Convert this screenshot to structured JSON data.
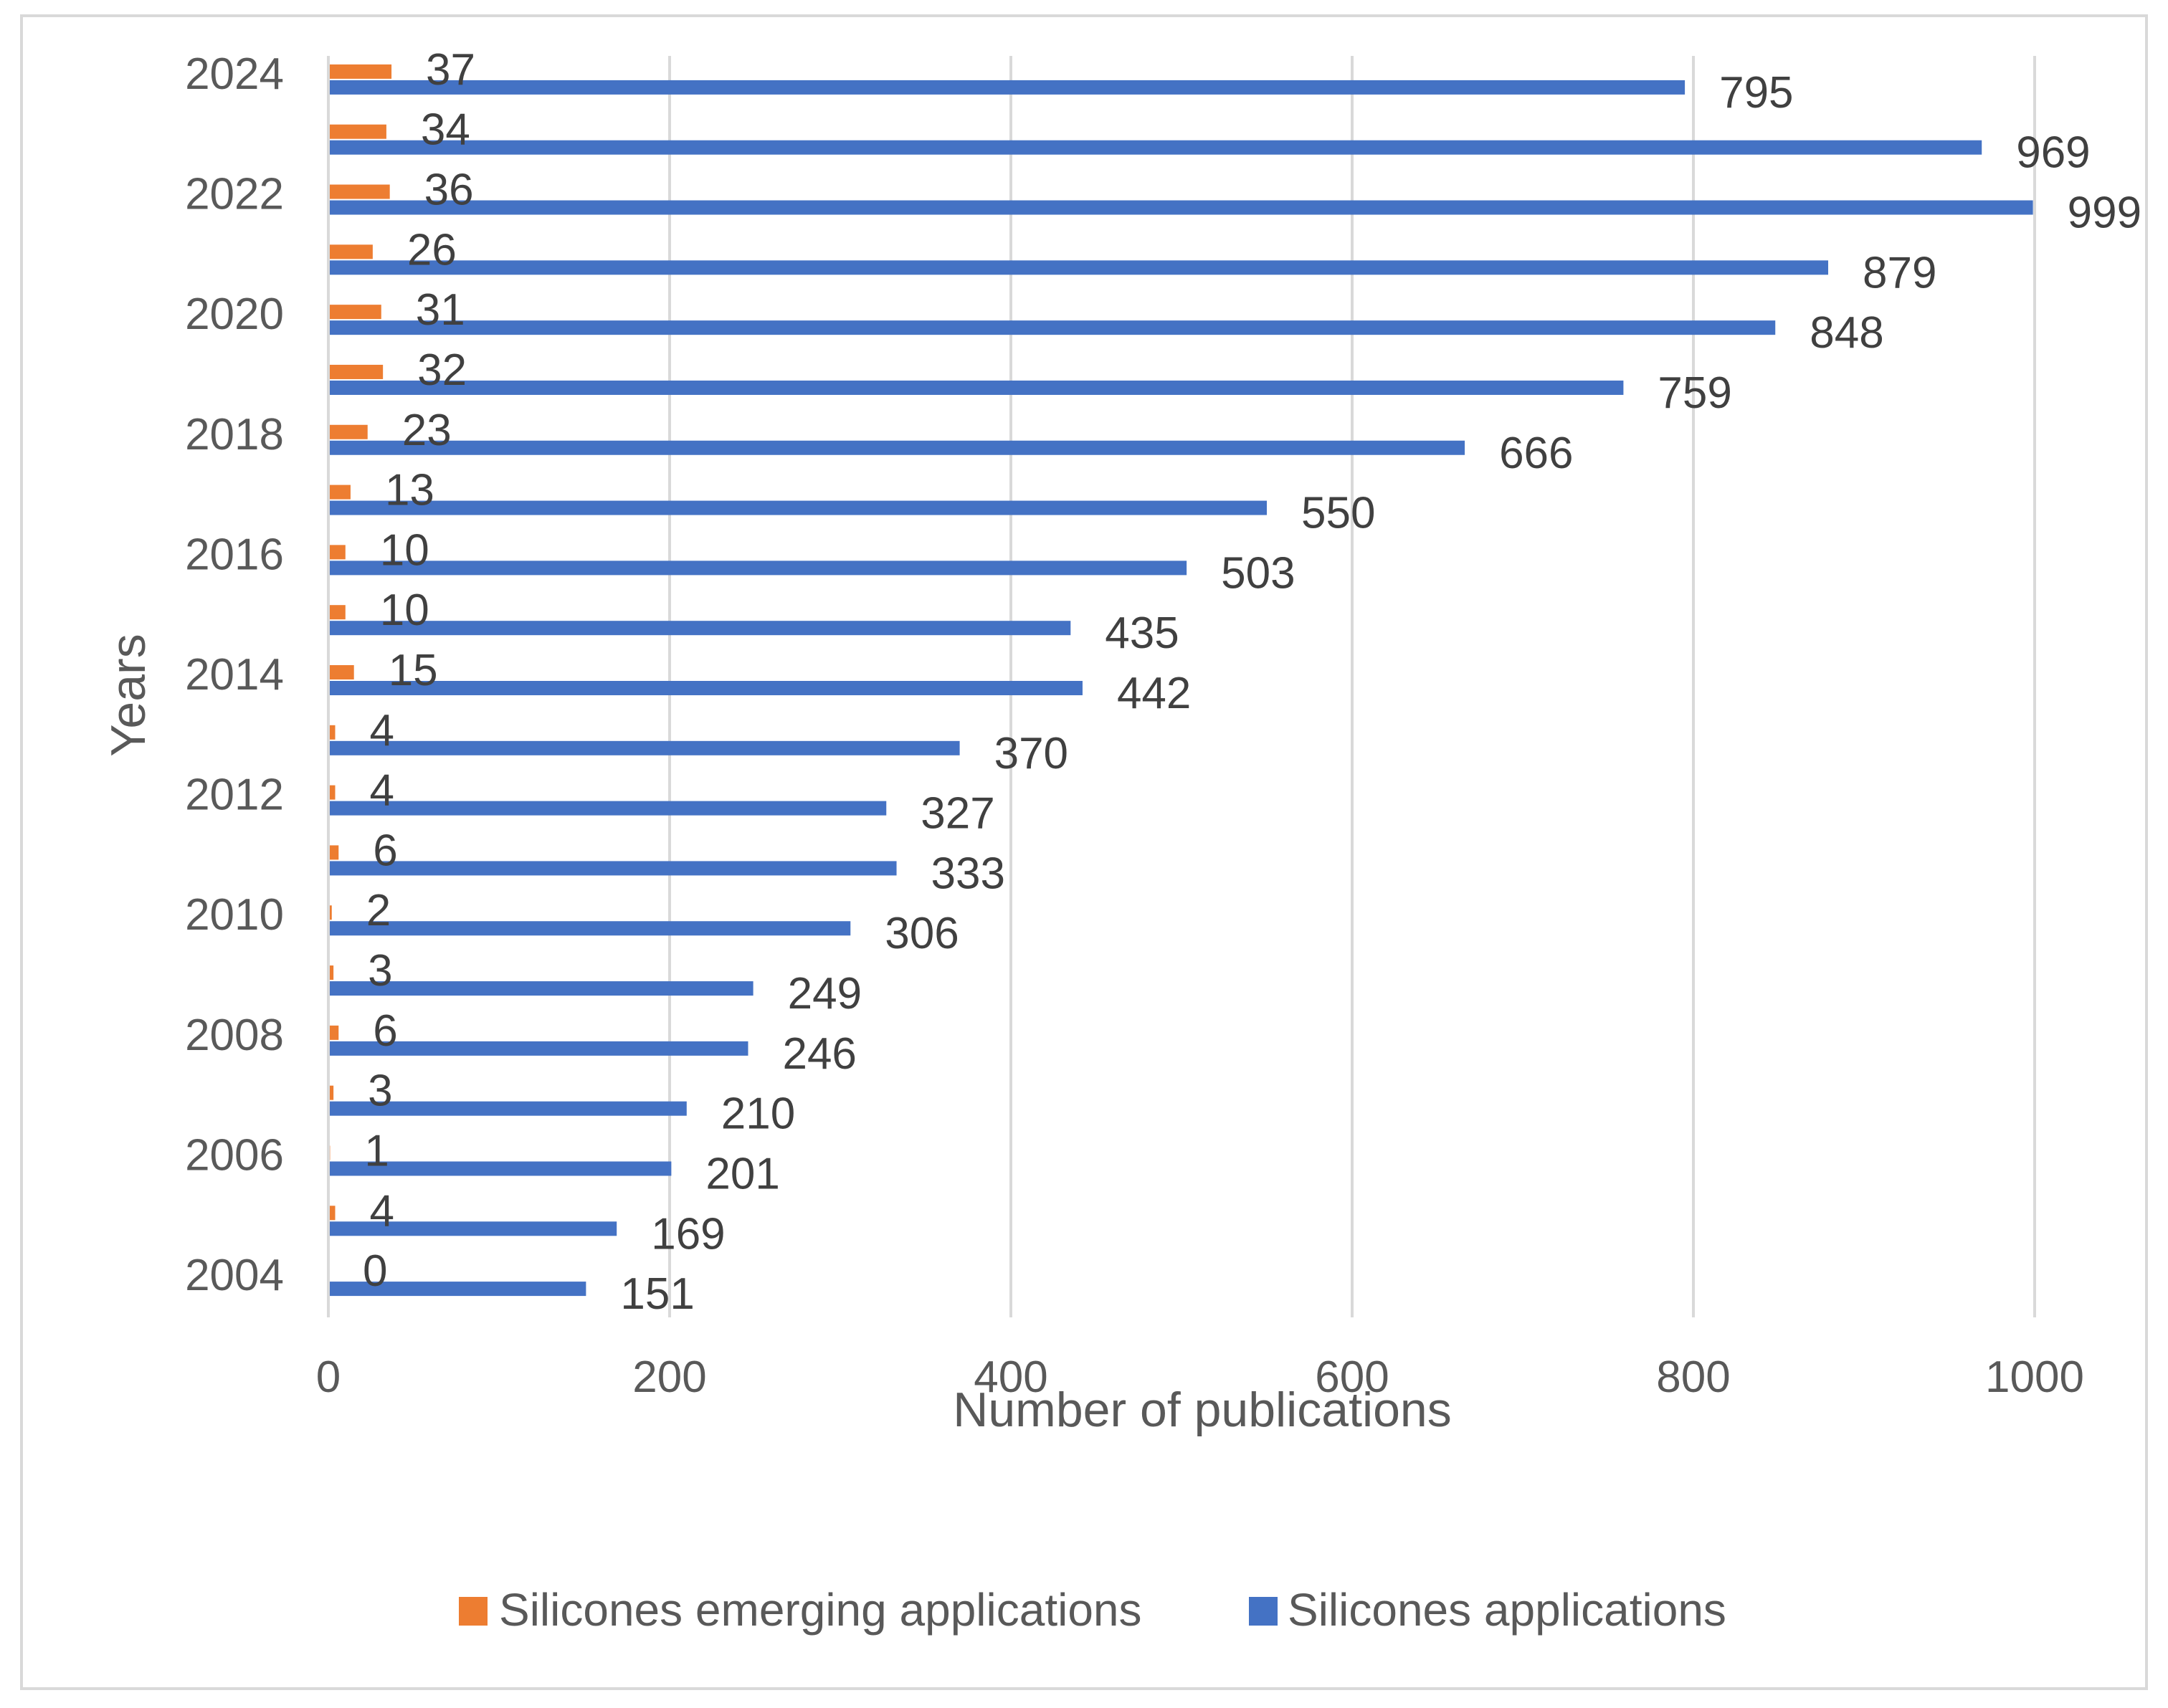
{
  "chart_data": {
    "type": "bar",
    "orientation": "horizontal",
    "title": "",
    "xlabel": "Number of publications",
    "ylabel": "Years",
    "xlim": [
      0,
      1000
    ],
    "xticks": [
      0,
      200,
      400,
      600,
      800,
      1000
    ],
    "grid": true,
    "legend_position": "bottom",
    "categories": [
      "2004",
      "2005",
      "2006",
      "2007",
      "2008",
      "2009",
      "2010",
      "2011",
      "2012",
      "2013",
      "2014",
      "2015",
      "2016",
      "2017",
      "2018",
      "2019",
      "2020",
      "2021",
      "2022",
      "2023",
      "2024"
    ],
    "category_labels_shown": [
      "2004",
      "2006",
      "2008",
      "2010",
      "2012",
      "2014",
      "2016",
      "2018",
      "2020",
      "2022",
      "2024"
    ],
    "series": [
      {
        "name": "Silicones emerging applications",
        "color": "#ED7D31",
        "values": [
          0,
          4,
          1,
          3,
          6,
          3,
          2,
          6,
          4,
          4,
          15,
          10,
          10,
          13,
          23,
          32,
          31,
          26,
          36,
          34,
          37
        ]
      },
      {
        "name": "Silicones applications",
        "color": "#4472C4",
        "values": [
          151,
          169,
          201,
          210,
          246,
          249,
          306,
          333,
          327,
          370,
          442,
          435,
          503,
          550,
          666,
          759,
          848,
          879,
          999,
          969,
          795
        ]
      }
    ]
  },
  "colors": {
    "gridline": "#d9d9d9",
    "frame": "#d9d9d9",
    "text": "#595959",
    "data_label": "#404040"
  }
}
